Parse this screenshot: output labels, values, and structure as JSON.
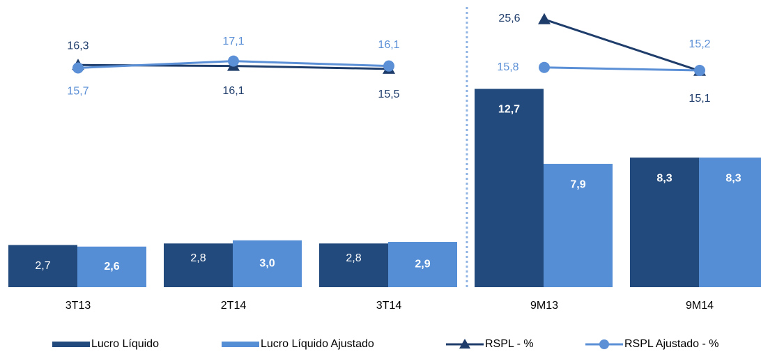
{
  "chart_data": {
    "type": "bar_line",
    "categories": [
      "3T13",
      "2T14",
      "3T14",
      "9M13",
      "9M14"
    ],
    "series": [
      {
        "name": "Lucro Líquido",
        "type": "bar",
        "color": "#234a7c",
        "values": [
          2.7,
          2.8,
          2.8,
          12.7,
          8.3
        ],
        "value_labels": [
          "2,7",
          "2,8",
          "2,8",
          "12,7",
          "8,3"
        ]
      },
      {
        "name": "Lucro Líquido Ajustado",
        "type": "bar",
        "color": "#558ed5",
        "values": [
          2.6,
          3.0,
          2.9,
          7.9,
          8.3
        ],
        "value_labels": [
          "2,6",
          "3,0",
          "2,9",
          "7,9",
          "8,3"
        ]
      },
      {
        "name": "RSPL - %",
        "type": "line",
        "marker": "triangle",
        "axis": "y2",
        "color": "#1f3d6b",
        "values": [
          16.3,
          16.1,
          15.5,
          25.6,
          15.1
        ],
        "value_labels": [
          "16,3",
          "16,1",
          "15,5",
          "25,6",
          "15,1"
        ]
      },
      {
        "name": "RSPL Ajustado - %",
        "type": "line",
        "marker": "circle",
        "axis": "y2",
        "color": "#5b8fd6",
        "values": [
          15.7,
          17.1,
          16.1,
          15.8,
          15.2
        ],
        "value_labels": [
          "15,7",
          "17,1",
          "16,1",
          "15,8",
          "15,2"
        ]
      }
    ],
    "legend": "bottom"
  }
}
